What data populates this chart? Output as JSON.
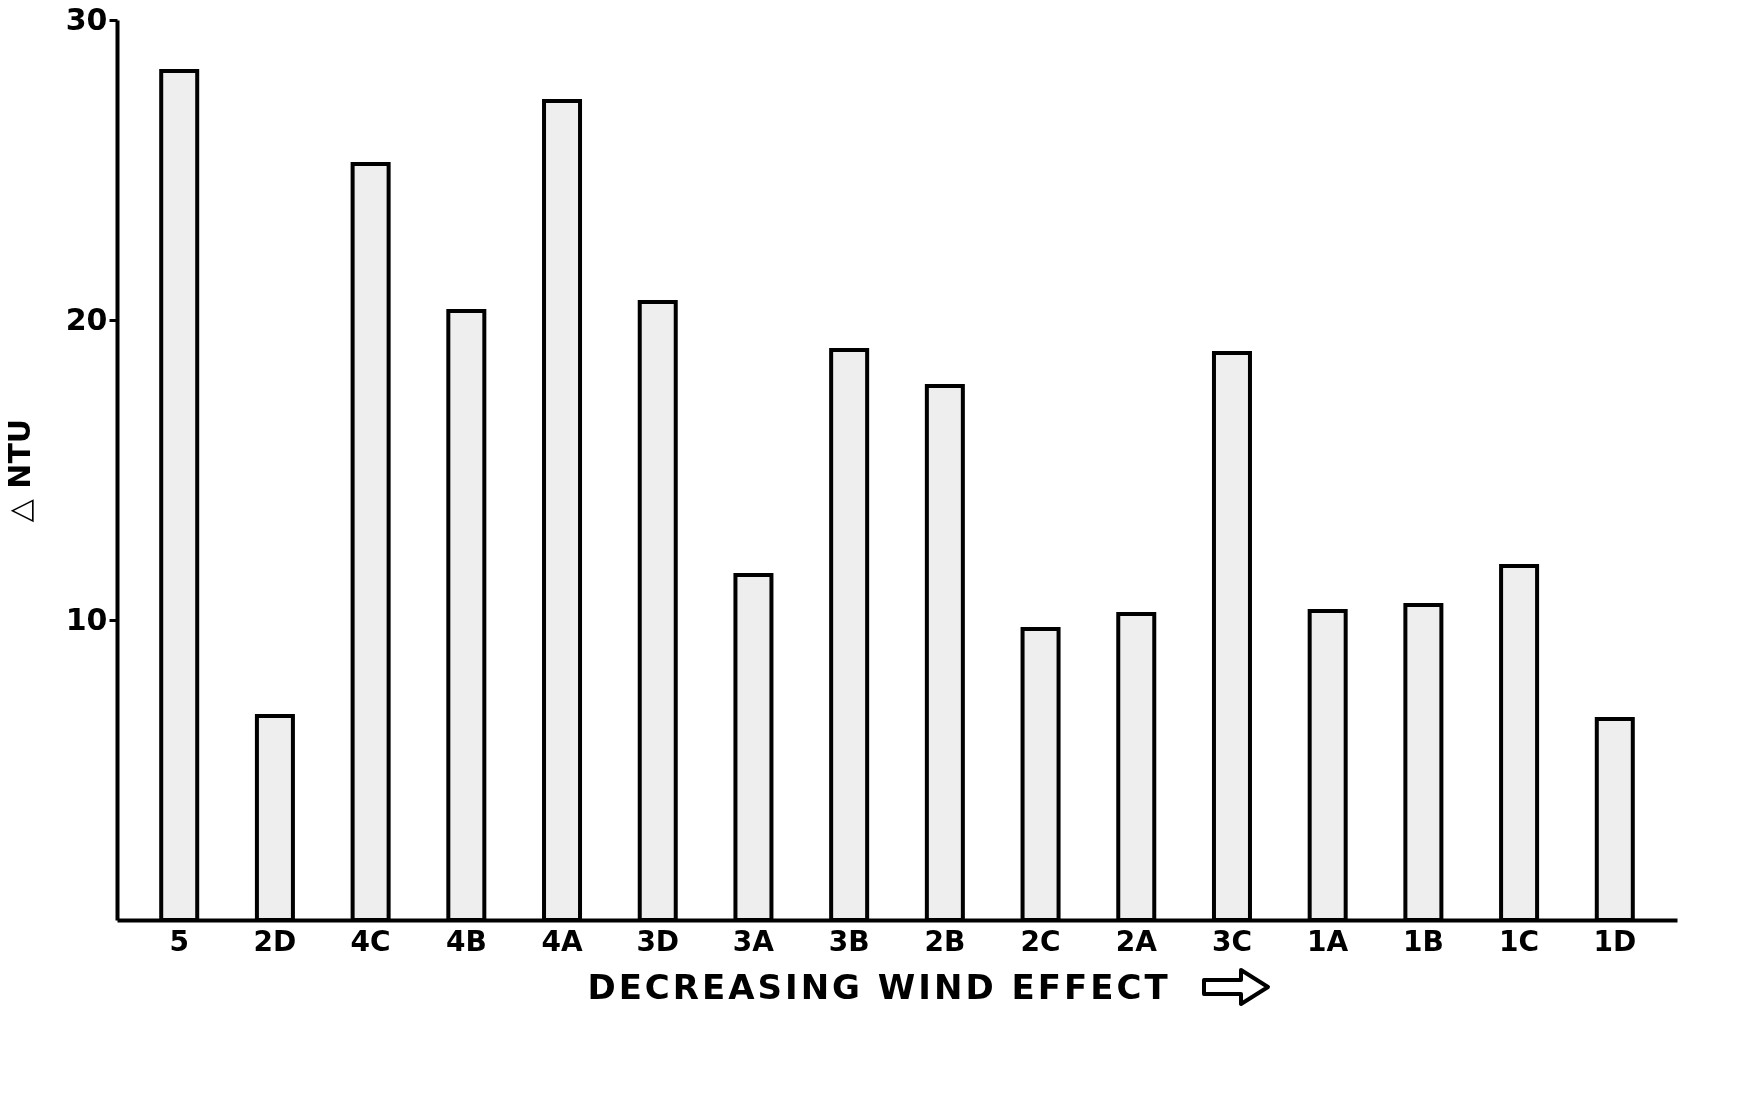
{
  "chart_data": {
    "type": "bar",
    "xlabel": "DECREASING WIND EFFECT",
    "ylabel": "△ NTU",
    "categories": [
      "5",
      "2D",
      "4C",
      "4B",
      "4A",
      "3D",
      "3A",
      "3B",
      "2B",
      "2C",
      "2A",
      "3C",
      "1A",
      "1B",
      "1C",
      "1D"
    ],
    "values": [
      28.3,
      6.8,
      25.2,
      20.3,
      27.3,
      20.6,
      11.5,
      19.0,
      17.8,
      9.7,
      10.2,
      18.9,
      10.3,
      10.5,
      11.8,
      6.7
    ],
    "color": "#eeeeee",
    "ylim": [
      0,
      30
    ],
    "yticks": [
      10,
      20,
      30
    ],
    "grid": false
  }
}
